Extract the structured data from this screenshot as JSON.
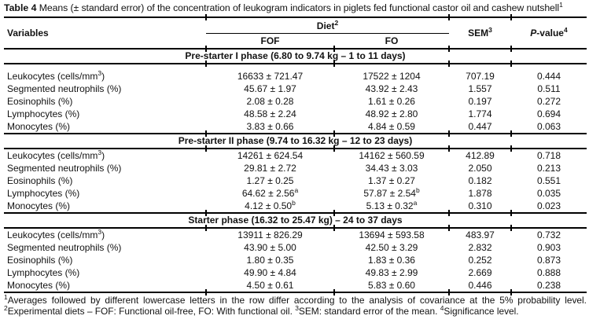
{
  "colors": {
    "text": "#121212",
    "rule": "#000000",
    "background": "#ffffff"
  },
  "title": {
    "label": "Table 4",
    "text": " Means (± standard error) of the concentration of leukogram indicators in piglets fed functional castor oil and cashew nutshell{1}"
  },
  "header": {
    "variables": "Variables",
    "diet": "Diet{2}",
    "fof": "FOF",
    "fo": "FO",
    "sem": "SEM{3}",
    "pvalue": "_P_-value{4}"
  },
  "sections": [
    {
      "phase": "Pre-starter I phase (6.80 to 9.74 kg – 1 to 11 days)",
      "rows": [
        {
          "variable": "Leukocytes (cells/mm{3})",
          "fof": "16633 ± 721.47",
          "fo": "17522 ± 1204",
          "sem": "707.19",
          "p": "0.444"
        },
        {
          "variable": "Segmented neutrophils (%)",
          "fof": "45.67 ± 1.97",
          "fo": "43.92 ± 2.43",
          "sem": "1.557",
          "p": "0.511"
        },
        {
          "variable": "Eosinophils (%)",
          "fof": "2.08 ± 0.28",
          "fo": "1.61 ± 0.26",
          "sem": "0.197",
          "p": "0.272"
        },
        {
          "variable": "Lymphocytes (%)",
          "fof": "48.58 ± 2.24",
          "fo": "48.92 ± 2.80",
          "sem": "1.774",
          "p": "0.694"
        },
        {
          "variable": "Monocytes (%)",
          "fof": "3.83 ± 0.66",
          "fo": "4.84 ± 0.59",
          "sem": "0.447",
          "p": "0.063"
        }
      ]
    },
    {
      "phase": "Pre-starter II phase (9.74 to 16.32 kg – 12 to 23 days)",
      "rows": [
        {
          "variable": "Leukocytes (cells/mm{3})",
          "fof": "14261 ± 624.54",
          "fo": "14162 ± 560.59",
          "sem": "412.89",
          "p": "0.718"
        },
        {
          "variable": "Segmented neutrophils (%)",
          "fof": "29.81 ± 2.72",
          "fo": "34.43 ± 3.03",
          "sem": "2.050",
          "p": "0.213"
        },
        {
          "variable": "Eosinophils (%)",
          "fof": "1.27 ± 0.25",
          "fo": "1.37 ± 0.27",
          "sem": "0.182",
          "p": "0.551"
        },
        {
          "variable": "Lymphocytes (%)",
          "fof": "64.62 ± 2.56{a}",
          "fo": "57.87 ± 2.54{b}",
          "sem": "1.878",
          "p": "0.035"
        },
        {
          "variable": "Monocytes (%)",
          "fof": "4.12 ± 0.50{b}",
          "fo": "5.13 ± 0.32{a}",
          "sem": "0.310",
          "p": "0.023"
        }
      ]
    },
    {
      "phase": "Starter phase (16.32 to 25.47 kg) – 24 to 37 days",
      "rows": [
        {
          "variable": "Leukocytes (cells/mm{3})",
          "fof": "13911 ± 826.29",
          "fo": "13694 ± 593.58",
          "sem": "483.97",
          "p": "0.732"
        },
        {
          "variable": "Segmented neutrophils (%)",
          "fof": "43.90 ± 5.00",
          "fo": "42.50 ± 3.29",
          "sem": "2.832",
          "p": "0.903"
        },
        {
          "variable": "Eosinophils (%)",
          "fof": "1.80 ± 0.35",
          "fo": "1.83 ± 0.36",
          "sem": "0.252",
          "p": "0.873"
        },
        {
          "variable": "Lymphocytes (%)",
          "fof": "49.90 ± 4.84",
          "fo": "49.83 ± 2.99",
          "sem": "2.669",
          "p": "0.888"
        },
        {
          "variable": "Monocytes (%)",
          "fof": "4.50 ± 0.61",
          "fo": "5.83 ± 0.60",
          "sem": "0.446",
          "p": "0.238"
        }
      ]
    }
  ],
  "footnote": "{1}Averages followed by different lowercase letters in the row differ according to the analysis of covariance at the 5% probability level. {2}Experimental diets – FOF: Functional oil-free, FO: With functional oil. {3}SEM: standard error of the mean. {4}Significance level."
}
